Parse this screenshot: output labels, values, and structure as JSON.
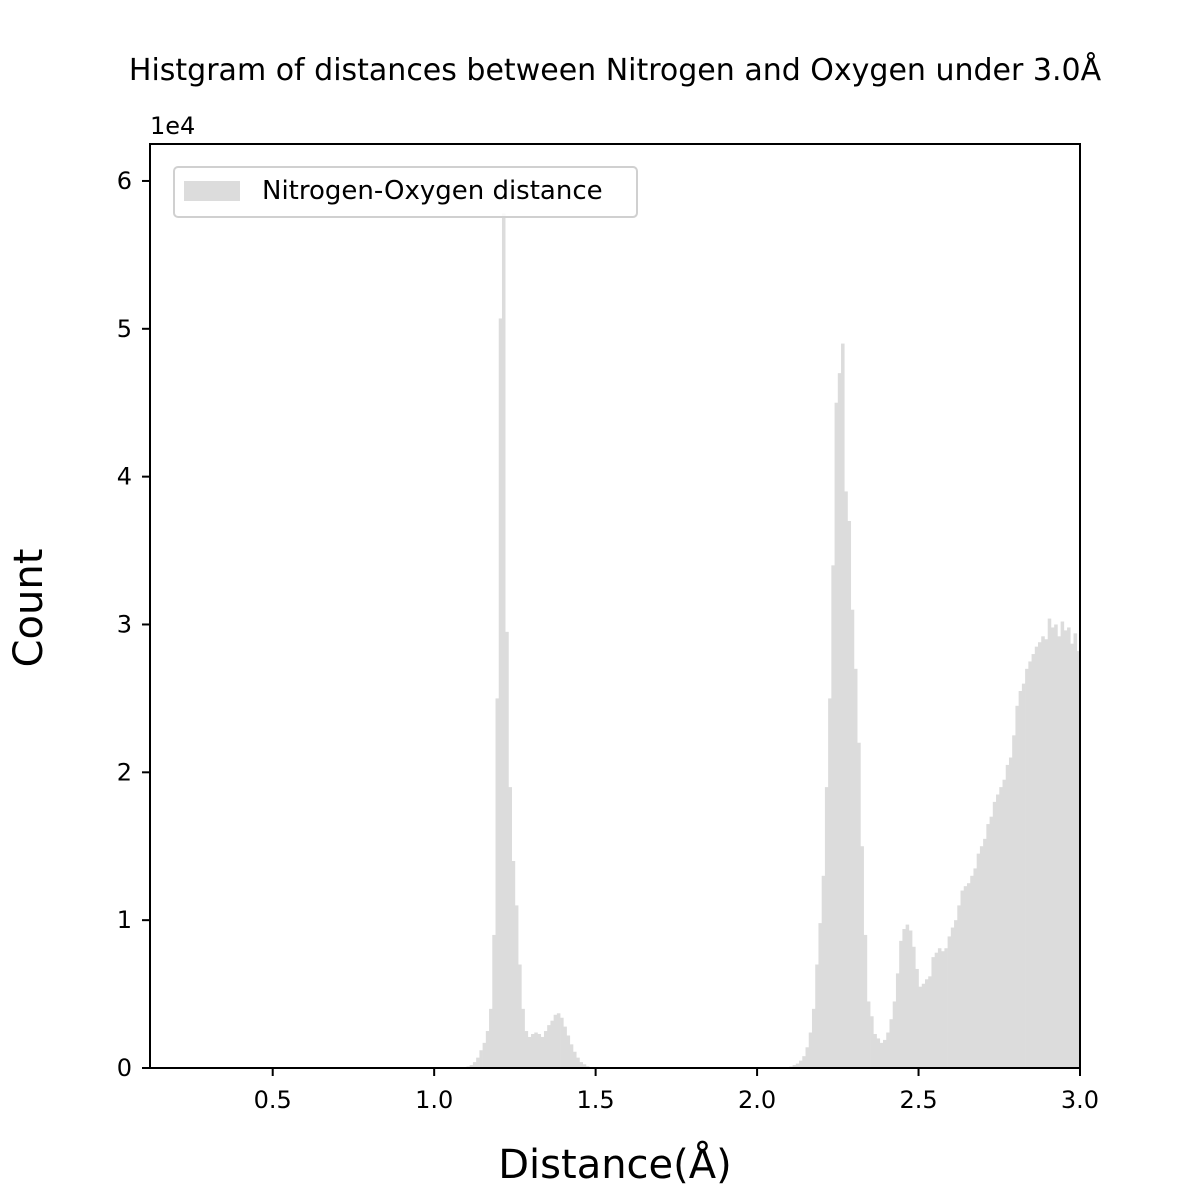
{
  "chart_data": {
    "type": "bar",
    "title": "Histgram of distances between Nitrogen and Oxygen under 3.0Å",
    "xlabel": "Distance(Å)",
    "ylabel": "Count",
    "y_offset_label": "1e4",
    "xlim": [
      0.12,
      3.0
    ],
    "ylim": [
      0,
      62500
    ],
    "xticks": [
      0.5,
      1.0,
      1.5,
      2.0,
      2.5,
      3.0
    ],
    "xtick_labels": [
      "0.5",
      "1.0",
      "1.5",
      "2.0",
      "2.5",
      "3.0"
    ],
    "yticks": [
      0,
      10000,
      20000,
      30000,
      40000,
      50000,
      60000
    ],
    "ytick_labels": [
      "0",
      "1",
      "2",
      "3",
      "4",
      "5",
      "6"
    ],
    "bar_color": "#dcdcdc",
    "legend": {
      "position": "top-left",
      "entries": [
        "Nitrogen-Oxygen distance"
      ]
    },
    "grid": false,
    "bin_width": 0.01,
    "series": [
      {
        "name": "Nitrogen-Oxygen distance",
        "x": [
          1.105,
          1.115,
          1.125,
          1.135,
          1.145,
          1.155,
          1.165,
          1.175,
          1.185,
          1.195,
          1.205,
          1.215,
          1.225,
          1.235,
          1.245,
          1.255,
          1.265,
          1.275,
          1.285,
          1.295,
          1.305,
          1.315,
          1.325,
          1.335,
          1.345,
          1.355,
          1.365,
          1.375,
          1.385,
          1.395,
          1.405,
          1.415,
          1.425,
          1.435,
          1.445,
          1.455,
          1.465,
          1.475,
          1.485,
          1.495,
          1.505,
          2.105,
          2.115,
          2.125,
          2.135,
          2.145,
          2.155,
          2.165,
          2.175,
          2.185,
          2.195,
          2.205,
          2.215,
          2.225,
          2.235,
          2.245,
          2.255,
          2.265,
          2.275,
          2.285,
          2.295,
          2.305,
          2.315,
          2.325,
          2.335,
          2.345,
          2.355,
          2.365,
          2.375,
          2.385,
          2.395,
          2.405,
          2.415,
          2.425,
          2.435,
          2.445,
          2.455,
          2.465,
          2.475,
          2.485,
          2.495,
          2.505,
          2.515,
          2.525,
          2.535,
          2.545,
          2.555,
          2.565,
          2.575,
          2.585,
          2.595,
          2.605,
          2.615,
          2.625,
          2.635,
          2.645,
          2.655,
          2.665,
          2.675,
          2.685,
          2.695,
          2.705,
          2.715,
          2.725,
          2.735,
          2.745,
          2.755,
          2.765,
          2.775,
          2.785,
          2.795,
          2.805,
          2.815,
          2.825,
          2.835,
          2.845,
          2.855,
          2.865,
          2.875,
          2.885,
          2.895,
          2.905,
          2.915,
          2.925,
          2.935,
          2.945,
          2.955,
          2.965,
          2.975,
          2.985,
          2.995
        ],
        "values": [
          100,
          200,
          400,
          700,
          1200,
          1700,
          2500,
          4000,
          9000,
          25000,
          50700,
          57800,
          29500,
          19000,
          14000,
          11000,
          7000,
          4000,
          2500,
          2100,
          2300,
          2400,
          2300,
          2100,
          2500,
          2900,
          3200,
          3600,
          3700,
          3400,
          2800,
          2200,
          1600,
          1100,
          700,
          400,
          250,
          120,
          60,
          30,
          10,
          100,
          200,
          300,
          500,
          800,
          1400,
          2400,
          4000,
          7000,
          9800,
          13000,
          19000,
          25000,
          34000,
          45000,
          47000,
          49000,
          39000,
          37000,
          31000,
          27000,
          22000,
          15000,
          9000,
          4500,
          3500,
          2300,
          2000,
          1700,
          1900,
          2400,
          3300,
          4500,
          6400,
          8600,
          9400,
          9700,
          9300,
          8200,
          6700,
          5500,
          5700,
          6000,
          6200,
          7500,
          7800,
          8100,
          7900,
          8100,
          8900,
          9500,
          10000,
          11000,
          12000,
          12300,
          12500,
          13000,
          13500,
          14500,
          15000,
          15500,
          16500,
          17000,
          18000,
          18500,
          19000,
          19500,
          20500,
          21000,
          22500,
          24500,
          25500,
          26000,
          27000,
          27500,
          28000,
          28500,
          28800,
          29200,
          29000,
          30400,
          29800,
          30000,
          29200,
          30200,
          29600,
          29800,
          28700,
          29400,
          28200
        ]
      }
    ]
  }
}
